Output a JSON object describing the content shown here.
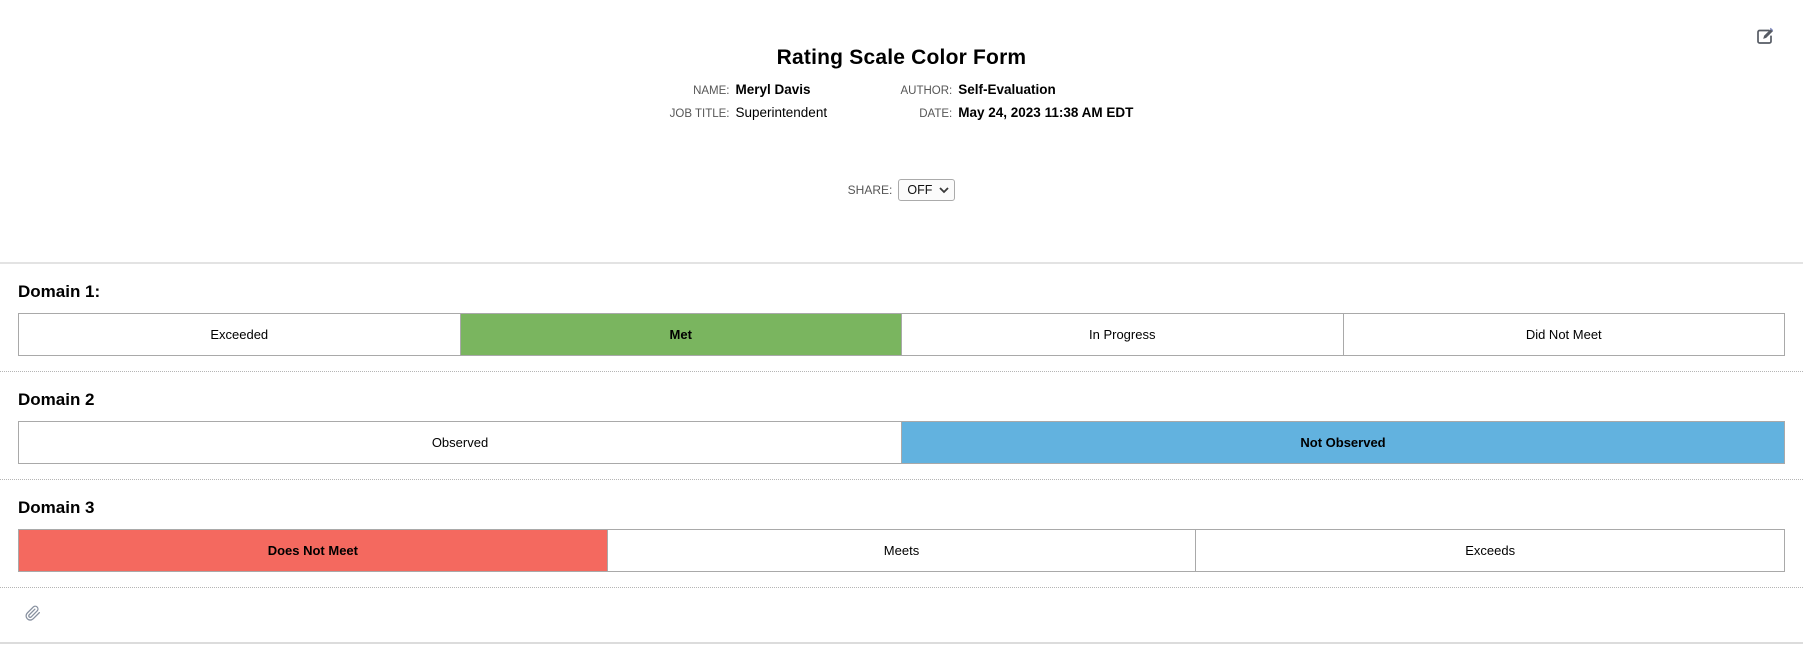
{
  "header": {
    "title": "Rating Scale Color Form",
    "info": {
      "rows": [
        {
          "left_label": "NAME:",
          "left_value": "Meryl Davis",
          "left_bold": true,
          "right_label": "AUTHOR:",
          "right_value": "Self-Evaluation",
          "right_bold": true
        },
        {
          "left_label": "JOB TITLE:",
          "left_value": "Superintendent",
          "left_bold": false,
          "right_label": "DATE:",
          "right_value": "May 24, 2023 11:38 AM EDT",
          "right_bold": true
        }
      ]
    },
    "share": {
      "label": "SHARE:",
      "selected_option": "OFF"
    }
  },
  "domains": [
    {
      "label": "Domain 1:",
      "options": [
        {
          "label": "Exceeded",
          "selected": false
        },
        {
          "label": "Met",
          "selected": true,
          "color": "#7AB55F"
        },
        {
          "label": "In Progress",
          "selected": false
        },
        {
          "label": "Did Not Meet",
          "selected": false
        }
      ]
    },
    {
      "label": "Domain 2",
      "options": [
        {
          "label": "Observed",
          "selected": false
        },
        {
          "label": "Not Observed",
          "selected": true,
          "color": "#62B2DF"
        }
      ]
    },
    {
      "label": "Domain 3",
      "options": [
        {
          "label": "Does Not Meet",
          "selected": true,
          "color": "#F4695F"
        },
        {
          "label": "Meets",
          "selected": false
        },
        {
          "label": "Exceeds",
          "selected": false
        }
      ]
    }
  ],
  "colors": {
    "selected_green": "#7AB55F",
    "selected_blue": "#62B2DF",
    "selected_red": "#F4695F",
    "cell_border": "#A9A9A9",
    "section_divider_dotted": "#B5B5B5",
    "header_divider": "#E3E3E3",
    "label_gray": "#565656"
  }
}
